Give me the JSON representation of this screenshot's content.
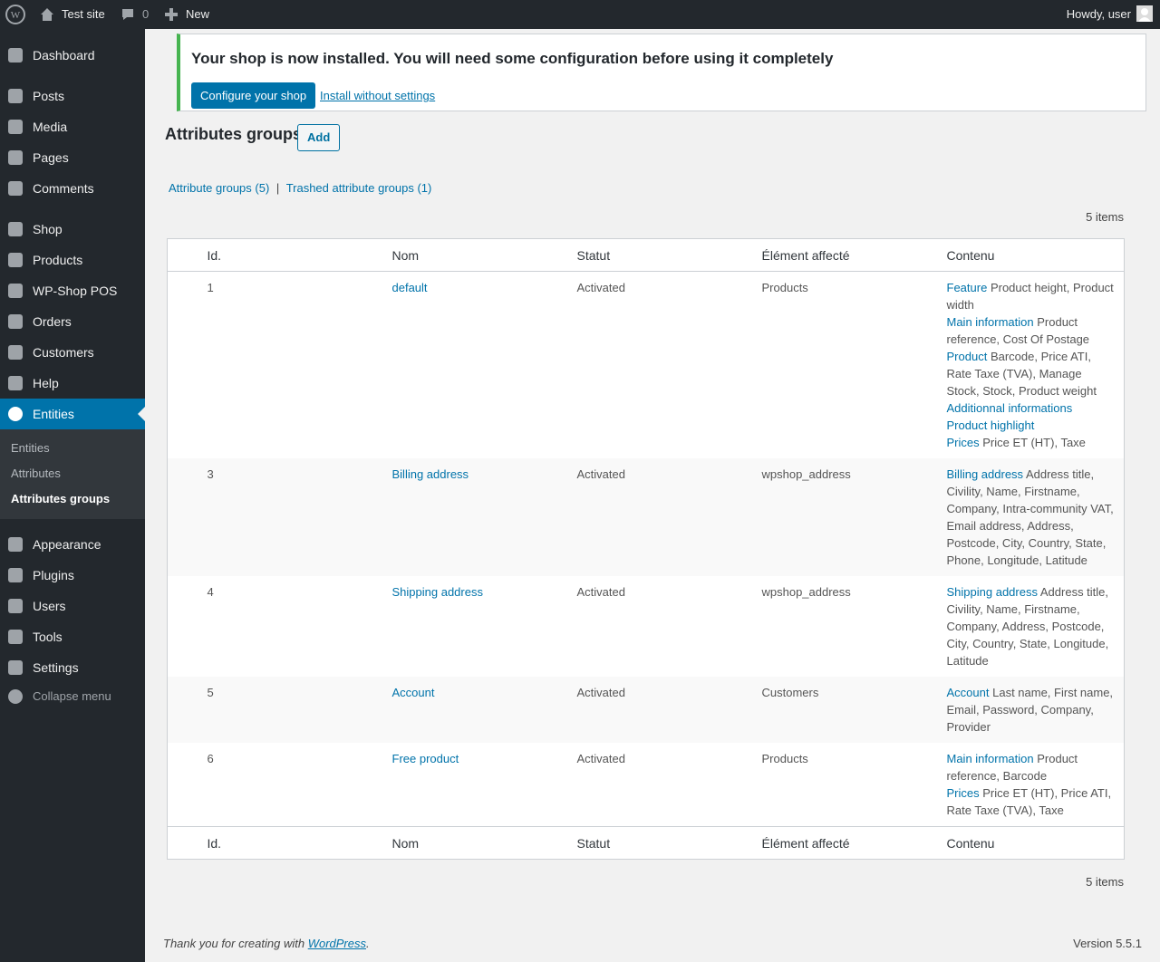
{
  "admin_bar": {
    "site": "Test site",
    "comments": "0",
    "new": "New",
    "howdy": "Howdy, user"
  },
  "menu": [
    "Dashboard",
    "Posts",
    "Media",
    "Pages",
    "Comments",
    "Shop",
    "Products",
    "WP-Shop POS",
    "Orders",
    "Customers",
    "Help",
    "Entities",
    "Appearance",
    "Plugins",
    "Users",
    "Tools",
    "Settings"
  ],
  "submenu": [
    "Entities",
    "Attributes",
    "Attributes groups"
  ],
  "collapse": "Collapse menu",
  "notice": {
    "title": "Your shop is now installed. You will need some configuration before using it completely",
    "primary": "Configure your shop",
    "secondary": "Install without settings"
  },
  "header": {
    "title": "Attributes groups",
    "add": "Add"
  },
  "views": {
    "all": "Attribute groups (5)",
    "separator": "|",
    "trash": "Trashed attribute groups (1)"
  },
  "items_top": "5 items",
  "items_bottom": "5 items",
  "table": {
    "columns": [
      "Id.",
      "Nom",
      "Statut",
      "Élément affecté",
      "Contenu"
    ],
    "rows": [
      {
        "id": "1",
        "nom": "default",
        "statut": "Activated",
        "element": "Products",
        "contenu": [
          {
            "group": "Feature",
            "fields": "Product height, Product width"
          },
          {
            "group": "Main information",
            "fields": "Product reference, Cost Of Postage"
          },
          {
            "group": "Product",
            "fields": "Barcode, Price ATI, Rate Taxe (TVA), Manage Stock, Stock, Product weight"
          },
          {
            "group": "Additionnal informations"
          },
          {
            "group": "Product highlight"
          },
          {
            "group": "Prices",
            "fields": "Price ET (HT), Taxe"
          }
        ]
      },
      {
        "id": "3",
        "nom": "Billing address",
        "statut": "Activated",
        "element": "wpshop_address",
        "contenu": [
          {
            "group": "Billing address",
            "fields": "Address title, Civility, Name, Firstname, Company, Intra-community VAT, Email address, Address, Postcode, City, Country, State, Phone, Longitude, Latitude"
          }
        ]
      },
      {
        "id": "4",
        "nom": "Shipping address",
        "statut": "Activated",
        "element": "wpshop_address",
        "contenu": [
          {
            "group": "Shipping address",
            "fields": "Address title, Civility, Name, Firstname, Company, Address, Postcode, City, Country, State, Longitude, Latitude"
          }
        ]
      },
      {
        "id": "5",
        "nom": "Account",
        "statut": "Activated",
        "element": "Customers",
        "contenu": [
          {
            "group": "Account",
            "fields": "Last name, First name, Email, Password, Company, Provider"
          }
        ]
      },
      {
        "id": "6",
        "nom": "Free product",
        "statut": "Activated",
        "element": "Products",
        "contenu": [
          {
            "group": "Main information",
            "fields": "Product reference, Barcode"
          },
          {
            "group": "Prices",
            "fields": "Price ET (HT), Price ATI, Rate Taxe (TVA), Taxe"
          }
        ]
      }
    ]
  },
  "footer": {
    "thanks": "Thank you for creating with",
    "link": "WordPress",
    "dot": ".",
    "version": "Version 5.5.1"
  }
}
